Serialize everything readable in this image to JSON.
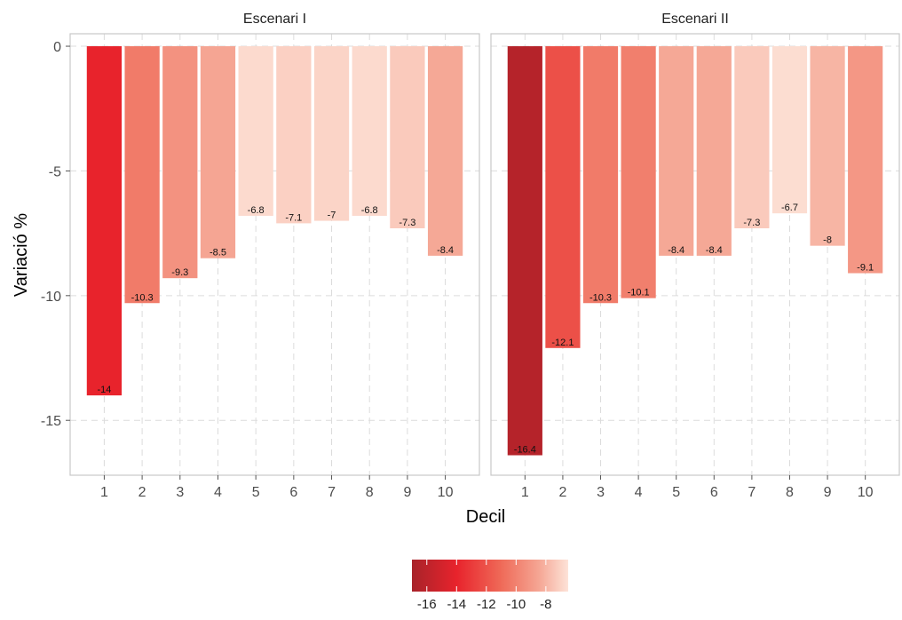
{
  "chart_data": {
    "type": "bar",
    "xlabel": "Decil",
    "ylabel": "Variació %",
    "categories": [
      "1",
      "2",
      "3",
      "4",
      "5",
      "6",
      "7",
      "8",
      "9",
      "10"
    ],
    "ylim": [
      -17.2,
      0.5
    ],
    "yticks": [
      0,
      -5,
      -10,
      -15
    ],
    "ytick_labels": [
      "0",
      "-5",
      "-10",
      "-15"
    ],
    "grid": true,
    "panels": [
      {
        "name": "Escenari I",
        "values": [
          -14,
          -10.3,
          -9.3,
          -8.5,
          -6.8,
          -7.1,
          -7,
          -6.8,
          -7.3,
          -8.4
        ],
        "labels": [
          "-14",
          "-10.3",
          "-9.3",
          "-8.5",
          "-6.8",
          "-7.1",
          "-7",
          "-6.8",
          "-7.3",
          "-8.4"
        ]
      },
      {
        "name": "Escenari II",
        "values": [
          -16.4,
          -12.1,
          -10.3,
          -10.1,
          -8.4,
          -8.4,
          -7.3,
          -6.7,
          -8,
          -9.1
        ],
        "labels": [
          "-16.4",
          "-12.1",
          "-10.3",
          "-10.1",
          "-8.4",
          "-8.4",
          "-7.3",
          "-6.7",
          "-8",
          "-9.1"
        ]
      }
    ],
    "color_scale": {
      "min": -17,
      "max": -6.5,
      "stops": [
        {
          "value": -17,
          "color": "#a8232a"
        },
        {
          "value": -14,
          "color": "#e8232c"
        },
        {
          "value": -11,
          "color": "#ef6a58"
        },
        {
          "value": -8.5,
          "color": "#f5a593"
        },
        {
          "value": -6.5,
          "color": "#fde3d8"
        }
      ],
      "legend_ticks": [
        "-16",
        "-14",
        "-12",
        "-10",
        "-8"
      ],
      "legend_position": "bottom"
    }
  }
}
